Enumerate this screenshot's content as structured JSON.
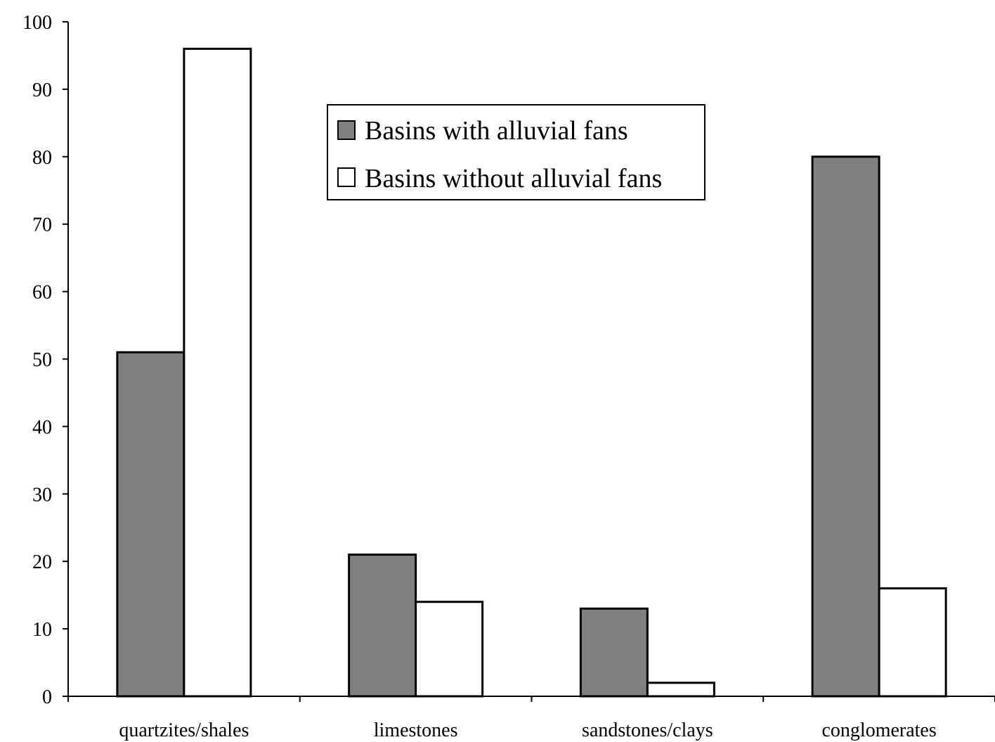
{
  "chart_data": {
    "type": "bar",
    "categories": [
      "quartzites/shales",
      "limestones",
      "sandstones/clays",
      "conglomerates"
    ],
    "series": [
      {
        "name": "Basins with alluvial fans",
        "values": [
          51,
          21,
          13,
          80
        ],
        "color": "#808080"
      },
      {
        "name": "Basins without alluvial fans",
        "values": [
          96,
          14,
          2,
          16
        ],
        "color": "#ffffff"
      }
    ],
    "title": "",
    "xlabel": "",
    "ylabel": "",
    "ylim": [
      0,
      100
    ],
    "yticks": [
      0,
      10,
      20,
      30,
      40,
      50,
      60,
      70,
      80,
      90,
      100
    ],
    "grid": false,
    "legend_position": "top-center"
  }
}
